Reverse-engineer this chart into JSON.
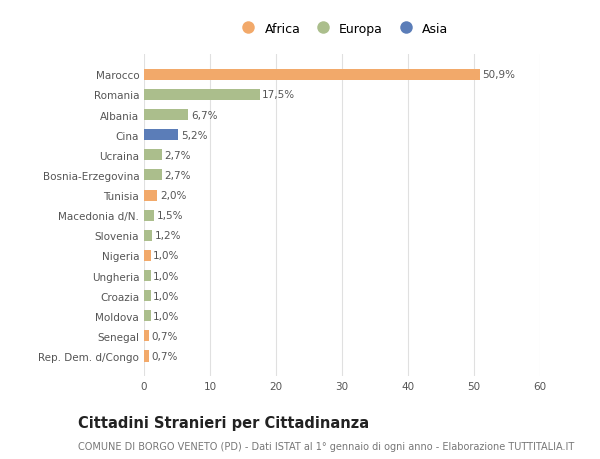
{
  "countries": [
    "Rep. Dem. d/Congo",
    "Senegal",
    "Moldova",
    "Croazia",
    "Ungheria",
    "Nigeria",
    "Slovenia",
    "Macedonia d/N.",
    "Tunisia",
    "Bosnia-Erzegovina",
    "Ucraina",
    "Cina",
    "Albania",
    "Romania",
    "Marocco"
  ],
  "values": [
    0.7,
    0.7,
    1.0,
    1.0,
    1.0,
    1.0,
    1.2,
    1.5,
    2.0,
    2.7,
    2.7,
    5.2,
    6.7,
    17.5,
    50.9
  ],
  "continents": [
    "Africa",
    "Africa",
    "Europa",
    "Europa",
    "Europa",
    "Africa",
    "Europa",
    "Europa",
    "Africa",
    "Europa",
    "Europa",
    "Asia",
    "Europa",
    "Europa",
    "Africa"
  ],
  "labels": [
    "0,7%",
    "0,7%",
    "1,0%",
    "1,0%",
    "1,0%",
    "1,0%",
    "1,2%",
    "1,5%",
    "2,0%",
    "2,7%",
    "2,7%",
    "5,2%",
    "6,7%",
    "17,5%",
    "50,9%"
  ],
  "continent_colors": {
    "Africa": "#F2A96A",
    "Europa": "#ABBE8C",
    "Asia": "#5B7DB8"
  },
  "background_color": "#ffffff",
  "plot_bg_color": "#ffffff",
  "title": "Cittadini Stranieri per Cittadinanza",
  "subtitle": "COMUNE DI BORGO VENETO (PD) - Dati ISTAT al 1° gennaio di ogni anno - Elaborazione TUTTITALIA.IT",
  "xlim": [
    0,
    60
  ],
  "xticks": [
    0,
    10,
    20,
    30,
    40,
    50,
    60
  ],
  "grid_color": "#e0e0e0",
  "bar_height": 0.55,
  "label_fontsize": 7.5,
  "tick_fontsize": 7.5,
  "title_fontsize": 10.5,
  "subtitle_fontsize": 7.0,
  "legend_fontsize": 9.0
}
